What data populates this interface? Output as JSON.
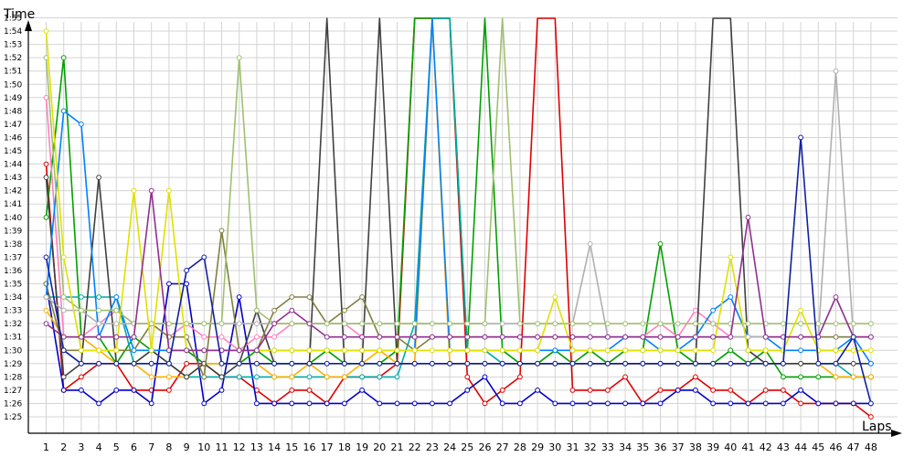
{
  "chart_data": {
    "type": "line",
    "ylabel": "Time",
    "xlabel": "Laps",
    "grid": true,
    "x": [
      1,
      2,
      3,
      4,
      5,
      6,
      7,
      8,
      9,
      10,
      11,
      12,
      13,
      14,
      15,
      16,
      17,
      18,
      19,
      20,
      21,
      22,
      23,
      24,
      25,
      26,
      27,
      28,
      29,
      30,
      31,
      32,
      33,
      34,
      35,
      36,
      37,
      38,
      39,
      40,
      41,
      42,
      43,
      44,
      45,
      46,
      47,
      48
    ],
    "y_ticks": [
      "1:25",
      "1:26",
      "1:27",
      "1:28",
      "1:29",
      "1:30",
      "1:31",
      "1:32",
      "1:33",
      "1:34",
      "1:35",
      "1:36",
      "1:37",
      "1:38",
      "1:39",
      "1:40",
      "1:41",
      "1:42",
      "1:43",
      "1:44",
      "1:45",
      "1:46",
      "1:47",
      "1:48",
      "1:49",
      "1:50",
      "1:51",
      "1:52",
      "1:53",
      "1:54",
      "1:55"
    ],
    "ylim_seconds": [
      84,
      117
    ],
    "series": [
      {
        "color": "#e00000",
        "values": [
          104,
          87,
          88,
          89,
          89,
          87,
          87,
          87,
          89,
          89,
          88,
          88,
          87,
          86,
          87,
          87,
          86,
          88,
          88,
          88,
          89,
          "out",
          "out",
          "out",
          88,
          86,
          87,
          88,
          "out",
          "out",
          87,
          87,
          87,
          88,
          86,
          87,
          87,
          88,
          87,
          87,
          86,
          87,
          87,
          86,
          86,
          86,
          86,
          85
        ]
      },
      {
        "color": "#0000c8",
        "values": [
          95,
          87,
          87,
          86,
          87,
          87,
          86,
          95,
          95,
          86,
          87,
          94,
          86,
          86,
          86,
          86,
          86,
          86,
          87,
          86,
          86,
          86,
          86,
          86,
          87,
          88,
          86,
          86,
          87,
          86,
          86,
          86,
          86,
          86,
          86,
          86,
          87,
          87,
          86,
          86,
          86,
          86,
          86,
          87,
          86,
          86,
          86,
          86
        ]
      },
      {
        "color": "#00a000",
        "values": [
          100,
          112,
          91,
          91,
          89,
          91,
          90,
          90,
          90,
          89,
          89,
          89,
          90,
          89,
          89,
          89,
          90,
          89,
          89,
          89,
          90,
          "out",
          "out",
          "out",
          90,
          "out",
          90,
          89,
          89,
          90,
          89,
          90,
          89,
          90,
          90,
          98,
          90,
          89,
          89,
          90,
          89,
          90,
          88,
          88,
          88,
          88,
          88,
          88
        ]
      },
      {
        "color": "#00aaaa",
        "values": [
          94,
          94,
          94,
          94,
          94,
          89,
          89,
          89,
          88,
          88,
          88,
          88,
          88,
          88,
          88,
          88,
          88,
          88,
          88,
          88,
          88,
          92,
          "out",
          "out",
          90,
          90,
          89,
          89,
          89,
          89,
          89,
          89,
          89,
          89,
          89,
          89,
          89,
          89,
          89,
          89,
          89,
          89,
          89,
          89,
          89,
          89,
          88,
          88
        ]
      },
      {
        "color": "#ffb000",
        "values": [
          93,
          91,
          91,
          90,
          89,
          89,
          88,
          88,
          88,
          89,
          89,
          89,
          89,
          88,
          88,
          89,
          88,
          88,
          89,
          90,
          89,
          89,
          "out",
          89,
          89,
          89,
          89,
          89,
          89,
          89,
          89,
          89,
          89,
          89,
          89,
          89,
          89,
          89,
          89,
          89,
          89,
          89,
          89,
          89,
          89,
          88,
          88,
          88
        ]
      },
      {
        "color": "#ff80c0",
        "values": [
          109,
          91,
          91,
          92,
          93,
          92,
          92,
          91,
          92,
          91,
          91,
          90,
          91,
          91,
          92,
          92,
          92,
          92,
          91,
          91,
          91,
          91,
          91,
          91,
          91,
          91,
          91,
          91,
          91,
          91,
          91,
          91,
          91,
          91,
          91,
          92,
          91,
          93,
          92,
          91,
          91,
          91,
          91,
          91,
          91,
          91,
          91,
          91
        ]
      },
      {
        "color": "#404040",
        "values": [
          103,
          88,
          89,
          103,
          89,
          89,
          90,
          89,
          88,
          89,
          88,
          89,
          93,
          89,
          89,
          89,
          "out",
          89,
          89,
          "out",
          89,
          89,
          89,
          89,
          89,
          89,
          89,
          89,
          89,
          89,
          89,
          89,
          89,
          89,
          89,
          89,
          89,
          89,
          "out",
          "out",
          90,
          89,
          89,
          89,
          89,
          89,
          89,
          89
        ]
      },
      {
        "color": "#808040",
        "values": [
          95,
          90,
          90,
          90,
          90,
          90,
          92,
          91,
          91,
          88,
          99,
          90,
          90,
          93,
          94,
          94,
          92,
          93,
          94,
          91,
          91,
          90,
          91,
          91,
          91,
          91,
          91,
          91,
          91,
          91,
          91,
          91,
          91,
          91,
          91,
          91,
          91,
          91,
          91,
          91,
          91,
          91,
          91,
          91,
          91,
          91,
          91,
          91
        ]
      },
      {
        "color": "#0080ff",
        "values": [
          94,
          108,
          107,
          91,
          94,
          90,
          90,
          90,
          90,
          90,
          90,
          90,
          90,
          90,
          90,
          90,
          90,
          90,
          90,
          90,
          90,
          90,
          "out",
          90,
          90,
          90,
          90,
          90,
          90,
          90,
          90,
          90,
          90,
          91,
          91,
          90,
          90,
          91,
          93,
          94,
          91,
          91,
          90,
          90,
          90,
          90,
          91,
          89
        ]
      },
      {
        "color": "#b0b0b0",
        "values": [
          94,
          93,
          93,
          92,
          92,
          92,
          92,
          92,
          92,
          92,
          92,
          92,
          92,
          92,
          92,
          92,
          92,
          92,
          92,
          92,
          92,
          92,
          92,
          92,
          92,
          92,
          92,
          92,
          92,
          92,
          92,
          98,
          91,
          91,
          91,
          91,
          91,
          91,
          91,
          91,
          91,
          91,
          91,
          91,
          91,
          111,
          91,
          91
        ]
      },
      {
        "color": "#a0c070",
        "values": [
          112,
          94,
          93,
          93,
          93,
          92,
          92,
          92,
          92,
          92,
          92,
          112,
          93,
          92,
          92,
          92,
          92,
          92,
          92,
          92,
          92,
          92,
          92,
          92,
          92,
          92,
          "out",
          92,
          92,
          92,
          92,
          92,
          92,
          92,
          92,
          92,
          92,
          92,
          92,
          92,
          92,
          92,
          92,
          92,
          92,
          92,
          92,
          92
        ]
      },
      {
        "color": "#e0e000",
        "values": [
          114,
          97,
          90,
          90,
          90,
          102,
          90,
          102,
          90,
          90,
          90,
          90,
          90,
          90,
          90,
          90,
          90,
          90,
          90,
          90,
          90,
          90,
          90,
          90,
          90,
          90,
          90,
          90,
          90,
          94,
          90,
          90,
          90,
          90,
          90,
          90,
          90,
          90,
          90,
          97,
          90,
          90,
          90,
          93,
          90,
          90,
          90,
          90
        ]
      },
      {
        "color": "#903090",
        "values": [
          92,
          91,
          91,
          91,
          91,
          91,
          102,
          90,
          90,
          90,
          90,
          90,
          90,
          92,
          93,
          92,
          91,
          91,
          91,
          91,
          91,
          91,
          91,
          91,
          91,
          91,
          91,
          91,
          91,
          91,
          91,
          91,
          91,
          91,
          91,
          91,
          91,
          91,
          91,
          91,
          100,
          91,
          91,
          91,
          91,
          94,
          91,
          91
        ]
      },
      {
        "color": "#1020a0",
        "values": [
          97,
          90,
          89,
          89,
          89,
          89,
          89,
          89,
          96,
          97,
          89,
          89,
          89,
          89,
          89,
          89,
          89,
          89,
          89,
          89,
          89,
          89,
          89,
          89,
          89,
          89,
          89,
          89,
          89,
          89,
          89,
          89,
          89,
          89,
          89,
          89,
          89,
          89,
          89,
          89,
          89,
          89,
          89,
          106,
          89,
          89,
          91,
          86
        ]
      }
    ]
  }
}
